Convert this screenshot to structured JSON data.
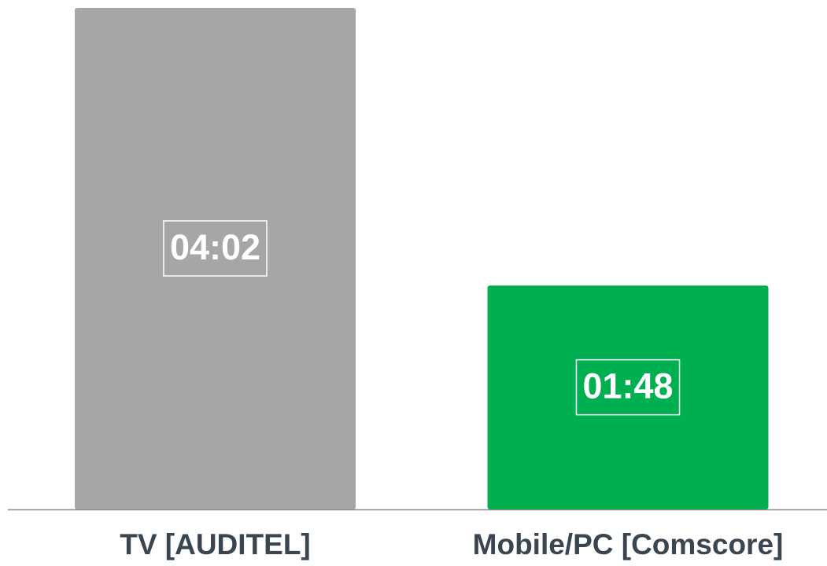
{
  "chart_data": {
    "type": "bar",
    "categories": [
      "TV [AUDITEL]",
      "Mobile/PC [Comscore]"
    ],
    "values": [
      242,
      108
    ],
    "value_labels": [
      "04:02",
      "01:48"
    ],
    "colors": [
      "#a6a6a6",
      "#00b050"
    ]
  }
}
